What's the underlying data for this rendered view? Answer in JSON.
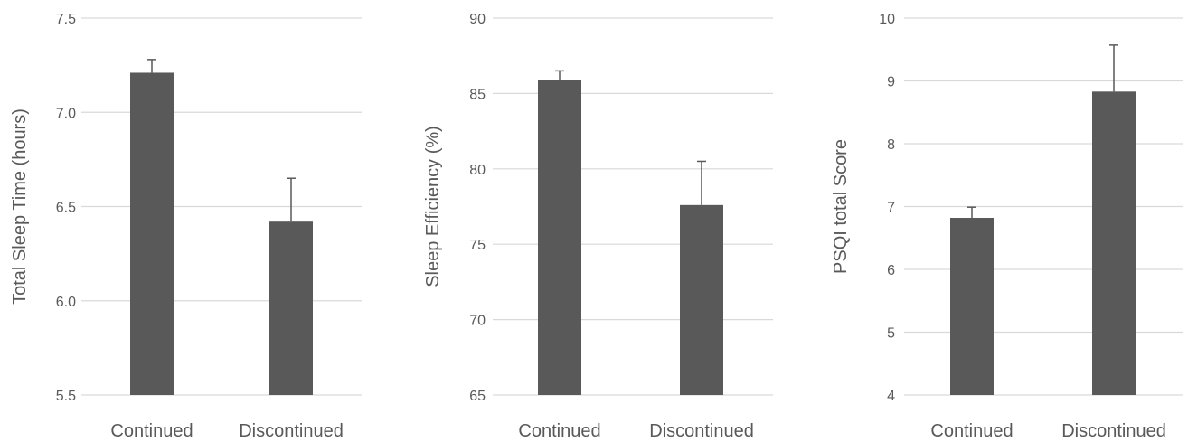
{
  "colors": {
    "bar": "#595959",
    "error_bar": "#595959",
    "grid": "#d9d9d9",
    "text": "#595959"
  },
  "chart_data": [
    {
      "type": "bar",
      "categories": [
        "Continued",
        "Discontinued"
      ],
      "values": [
        7.21,
        6.42
      ],
      "errors": [
        0.07,
        0.23
      ],
      "title": "",
      "xlabel": "",
      "ylabel": "Total Sleep Time (hours)",
      "ylim": [
        5.5,
        7.5
      ],
      "yticks": [
        5.5,
        6.0,
        6.5,
        7.0,
        7.5
      ],
      "ytick_labels": [
        "5.5",
        "6.0",
        "6.5",
        "7.0",
        "7.5"
      ],
      "grid": true,
      "legend": "none"
    },
    {
      "type": "bar",
      "categories": [
        "Continued",
        "Discontinued"
      ],
      "values": [
        85.9,
        77.6
      ],
      "errors": [
        0.6,
        2.9
      ],
      "title": "",
      "xlabel": "",
      "ylabel": "Sleep Efficiency (%)",
      "ylim": [
        65,
        90
      ],
      "yticks": [
        65,
        70,
        75,
        80,
        85,
        90
      ],
      "ytick_labels": [
        "65",
        "70",
        "75",
        "80",
        "85",
        "90"
      ],
      "grid": true,
      "legend": "none"
    },
    {
      "type": "bar",
      "categories": [
        "Continued",
        "Discontinued"
      ],
      "values": [
        6.82,
        8.83
      ],
      "errors": [
        0.17,
        0.74
      ],
      "title": "",
      "xlabel": "",
      "ylabel": "PSQI total Score",
      "ylim": [
        4,
        10
      ],
      "yticks": [
        4,
        5,
        6,
        7,
        8,
        9,
        10
      ],
      "ytick_labels": [
        "4",
        "5",
        "6",
        "7",
        "8",
        "9",
        "10"
      ],
      "grid": true,
      "legend": "none"
    }
  ]
}
